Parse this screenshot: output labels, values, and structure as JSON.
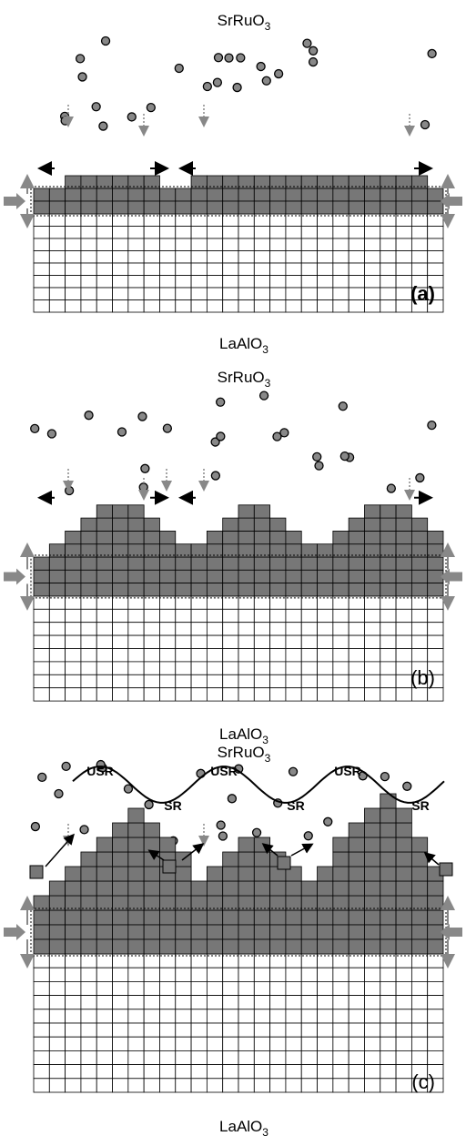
{
  "panels": [
    {
      "top_label": {
        "base": "SrRuO",
        "sub": "3"
      },
      "bottom_label": {
        "base": "LaAlO",
        "sub": "3"
      },
      "tag": "(a)"
    },
    {
      "top_label": {
        "base": "SrRuO",
        "sub": "3"
      },
      "bottom_label": {
        "base": "LaAlO",
        "sub": "3"
      },
      "tag": "(b)"
    },
    {
      "top_label": {
        "base": "SrRuO",
        "sub": "3"
      },
      "bottom_label": {
        "base": "LaAlO",
        "sub": "3"
      },
      "tag": "(c)"
    }
  ],
  "wave_labels": {
    "usr": [
      "USR",
      "USR",
      "USR"
    ],
    "sr": [
      "SR",
      "SR",
      "SR"
    ]
  }
}
